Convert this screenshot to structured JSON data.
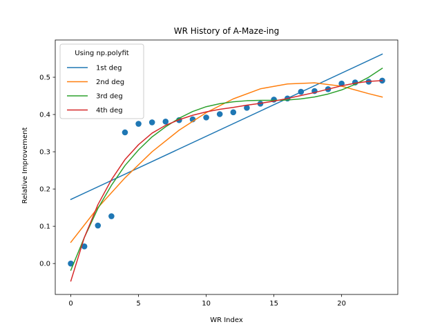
{
  "chart_data": {
    "type": "scatter",
    "title": "WR History of A-Maze-ing",
    "xlabel": "WR Index",
    "ylabel": "Relative Improvement",
    "xlim": [
      -1.15,
      24.15
    ],
    "ylim": [
      -0.083,
      0.6
    ],
    "xticks": [
      0,
      5,
      10,
      15,
      20
    ],
    "yticks": [
      0.0,
      0.1,
      0.2,
      0.3,
      0.4,
      0.5
    ],
    "legend": {
      "title": "Using np.polyfit",
      "placement": "top-left"
    },
    "points": {
      "color": "#1f77b4",
      "x": [
        0,
        1,
        2,
        3,
        4,
        5,
        6,
        7,
        8,
        9,
        10,
        11,
        12,
        13,
        14,
        15,
        16,
        17,
        18,
        19,
        20,
        21,
        22,
        23
      ],
      "y": [
        0.0,
        0.046,
        0.102,
        0.127,
        0.352,
        0.375,
        0.379,
        0.381,
        0.385,
        0.387,
        0.392,
        0.401,
        0.406,
        0.418,
        0.429,
        0.44,
        0.443,
        0.461,
        0.463,
        0.468,
        0.483,
        0.486,
        0.488,
        0.491
      ]
    },
    "series": [
      {
        "name": "1st deg",
        "color": "#1f77b4",
        "x": [
          0,
          23
        ],
        "y": [
          0.172,
          0.562
        ]
      },
      {
        "name": "2nd deg",
        "color": "#ff7f0e",
        "x": [
          0,
          2,
          4,
          6,
          8,
          10,
          12,
          14,
          16,
          18,
          20,
          22,
          23
        ],
        "y": [
          0.057,
          0.15,
          0.23,
          0.3,
          0.358,
          0.405,
          0.442,
          0.469,
          0.482,
          0.485,
          0.476,
          0.456,
          0.447
        ]
      },
      {
        "name": "3rd deg",
        "color": "#2ca02c",
        "x": [
          0,
          1,
          2,
          3,
          4,
          5,
          6,
          7,
          8,
          9,
          10,
          11,
          12,
          13,
          14,
          15,
          16,
          17,
          18,
          19,
          20,
          21,
          22,
          23
        ],
        "y": [
          -0.018,
          0.07,
          0.148,
          0.21,
          0.263,
          0.305,
          0.34,
          0.367,
          0.39,
          0.408,
          0.421,
          0.429,
          0.434,
          0.437,
          0.438,
          0.438,
          0.439,
          0.442,
          0.447,
          0.455,
          0.466,
          0.481,
          0.5,
          0.524
        ]
      },
      {
        "name": "4th deg",
        "color": "#d62728",
        "x": [
          0,
          1,
          2,
          3,
          4,
          5,
          6,
          7,
          8,
          9,
          10,
          11,
          12,
          13,
          14,
          15,
          16,
          17,
          18,
          19,
          20,
          21,
          22,
          23
        ],
        "y": [
          -0.047,
          0.07,
          0.158,
          0.225,
          0.279,
          0.319,
          0.35,
          0.371,
          0.386,
          0.398,
          0.407,
          0.414,
          0.419,
          0.425,
          0.43,
          0.436,
          0.443,
          0.451,
          0.459,
          0.468,
          0.477,
          0.484,
          0.489,
          0.491
        ]
      }
    ]
  }
}
